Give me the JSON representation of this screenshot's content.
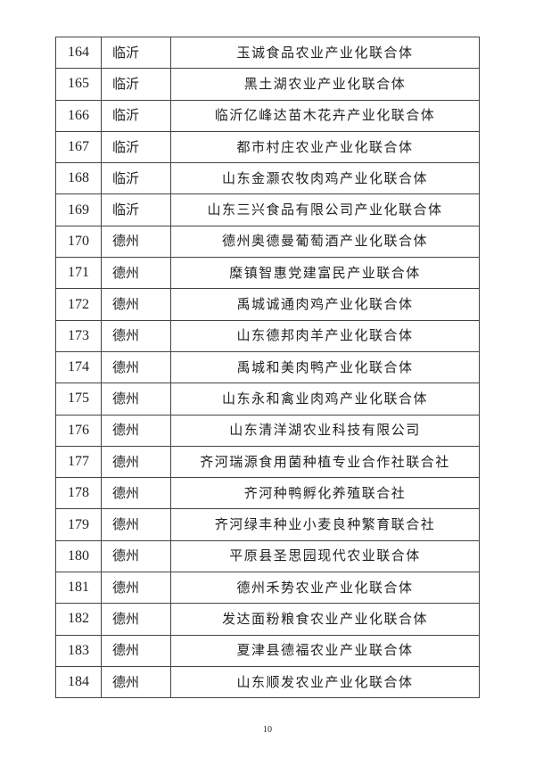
{
  "table": {
    "rows": [
      {
        "no": "164",
        "city": "临沂",
        "name": "玉诚食品农业产业化联合体"
      },
      {
        "no": "165",
        "city": "临沂",
        "name": "黑土湖农业产业化联合体"
      },
      {
        "no": "166",
        "city": "临沂",
        "name": "临沂亿峰达苗木花卉产业化联合体"
      },
      {
        "no": "167",
        "city": "临沂",
        "name": "都市村庄农业产业化联合体"
      },
      {
        "no": "168",
        "city": "临沂",
        "name": "山东金灏农牧肉鸡产业化联合体"
      },
      {
        "no": "169",
        "city": "临沂",
        "name": "山东三兴食品有限公司产业化联合体"
      },
      {
        "no": "170",
        "city": "德州",
        "name": "德州奥德曼葡萄酒产业化联合体"
      },
      {
        "no": "171",
        "city": "德州",
        "name": "糜镇智惠党建富民产业联合体"
      },
      {
        "no": "172",
        "city": "德州",
        "name": "禹城诚通肉鸡产业化联合体"
      },
      {
        "no": "173",
        "city": "德州",
        "name": "山东德邦肉羊产业化联合体"
      },
      {
        "no": "174",
        "city": "德州",
        "name": "禹城和美肉鸭产业化联合体"
      },
      {
        "no": "175",
        "city": "德州",
        "name": "山东永和禽业肉鸡产业化联合体"
      },
      {
        "no": "176",
        "city": "德州",
        "name": "山东清洋湖农业科技有限公司"
      },
      {
        "no": "177",
        "city": "德州",
        "name": "齐河瑞源食用菌种植专业合作社联合社"
      },
      {
        "no": "178",
        "city": "德州",
        "name": "齐河种鸭孵化养殖联合社"
      },
      {
        "no": "179",
        "city": "德州",
        "name": "齐河绿丰种业小麦良种繁育联合社"
      },
      {
        "no": "180",
        "city": "德州",
        "name": "平原县圣思园现代农业联合体"
      },
      {
        "no": "181",
        "city": "德州",
        "name": "德州禾势农业产业化联合体"
      },
      {
        "no": "182",
        "city": "德州",
        "name": "发达面粉粮食农业产业化联合体"
      },
      {
        "no": "183",
        "city": "德州",
        "name": "夏津县德福农业产业联合体"
      },
      {
        "no": "184",
        "city": "德州",
        "name": "山东顺发农业产业化联合体"
      }
    ]
  },
  "footer": {
    "page_number": "10"
  }
}
